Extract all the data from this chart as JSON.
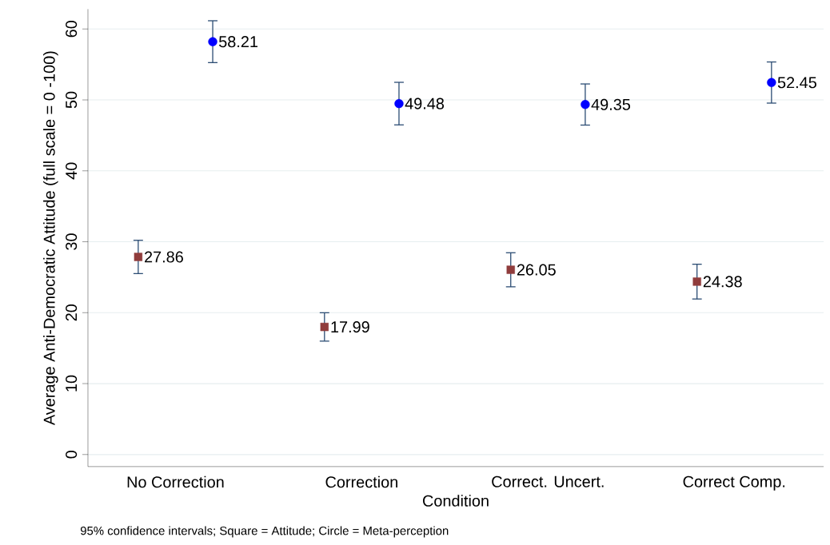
{
  "chart_data": {
    "type": "scatter",
    "xlabel": "Condition",
    "ylabel": "Average Anti-Democratic Attitude (full scale = 0 -100)",
    "categories": [
      "No Correction",
      "Correction",
      "Correct. Uncert.",
      "Correct Comp."
    ],
    "series": [
      {
        "color": "#903c3c",
        "marker": "square",
        "values": [
          27.86,
          17.99,
          26.05,
          24.38
        ],
        "errors": [
          2.35,
          2.0,
          2.4,
          2.45
        ]
      },
      {
        "color": "#0000ff",
        "marker": "circle",
        "values": [
          58.21,
          49.48,
          49.35,
          52.45
        ],
        "errors": [
          2.95,
          3.0,
          2.9,
          2.9
        ]
      }
    ],
    "data_labels": true,
    "grid": "y",
    "ylim": [
      -1.7,
      62.8
    ],
    "yticks": [
      0,
      10,
      20,
      30,
      40,
      50,
      60
    ],
    "annotations": [
      "95% confidence intervals; Square = Attitude; Circle = Meta-perception"
    ]
  }
}
